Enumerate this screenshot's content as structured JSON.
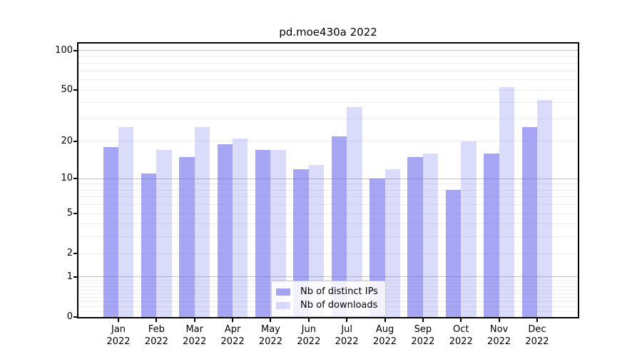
{
  "figure": {
    "title": "pd.moe430a 2022"
  },
  "chart_data": {
    "type": "bar",
    "title": "pd.moe430a 2022",
    "categories": [
      "Jan",
      "Feb",
      "Mar",
      "Apr",
      "May",
      "Jun",
      "Jul",
      "Aug",
      "Sep",
      "Oct",
      "Nov",
      "Dec"
    ],
    "x_tick_line2": "2022",
    "series": [
      {
        "name": "Nb of distinct IPs",
        "color": "rgba(92,92,235,0.55)",
        "values": [
          18,
          11,
          15,
          19,
          17,
          12,
          22,
          10,
          15,
          8,
          16,
          26
        ]
      },
      {
        "name": "Nb of downloads",
        "color": "rgba(92,92,235,0.22)",
        "values": [
          26,
          17,
          26,
          21,
          17,
          13,
          37,
          12,
          16,
          20,
          53,
          42
        ]
      }
    ],
    "yscale": "log1p",
    "ylim": [
      0,
      113
    ],
    "y_ticks": [
      100,
      50,
      20,
      10,
      5,
      2,
      1,
      0
    ],
    "grid": true,
    "legend_position": "lower center",
    "colors": {
      "major_grid": "#c3c3c3",
      "minor_grid": "#ededed",
      "spine": "#000000"
    }
  }
}
